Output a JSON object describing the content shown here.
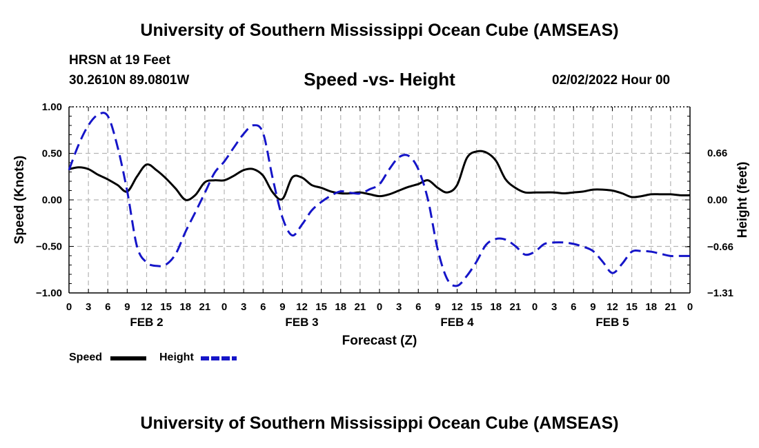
{
  "header": {
    "title": "University of Southern Mississippi Ocean Cube (AMSEAS)",
    "station": "HRSN at 19 Feet",
    "coordinates": "30.2610N  89.0801W",
    "subtitle": "Speed -vs- Height",
    "datestamp": "02/02/2022 Hour 00"
  },
  "footer": {
    "title": "University of Southern Mississippi Ocean Cube (AMSEAS)"
  },
  "chart_data": {
    "type": "line",
    "title": "Speed -vs- Height",
    "xlabel": "Forecast (Z)",
    "ylabel": "Speed (Knots)",
    "y2label": "Height (feet)",
    "x_range_hours": [
      0,
      96
    ],
    "x_tick_step_hours": 3,
    "x_tick_labels": [
      "0",
      "3",
      "6",
      "9",
      "12",
      "15",
      "18",
      "21",
      "0",
      "3",
      "6",
      "9",
      "12",
      "15",
      "18",
      "21",
      "0",
      "3",
      "6",
      "9",
      "12",
      "15",
      "18",
      "21",
      "0",
      "3",
      "6",
      "9",
      "12",
      "15",
      "18",
      "21",
      "0"
    ],
    "day_labels": [
      {
        "label": "FEB 2",
        "hour": 12
      },
      {
        "label": "FEB 3",
        "hour": 36
      },
      {
        "label": "FEB 4",
        "hour": 60
      },
      {
        "label": "FEB 5",
        "hour": 84
      }
    ],
    "ylim": [
      -1.0,
      1.0
    ],
    "y_ticks": [
      -1.0,
      -0.5,
      0.0,
      0.5,
      1.0
    ],
    "y_tick_labels": [
      "−1.00",
      "−0.50",
      "0.00",
      "0.50",
      "1.00"
    ],
    "y2lim": [
      -1.31,
      1.31
    ],
    "y2_ticks": [
      -1.31,
      -0.66,
      0.0,
      0.66
    ],
    "y2_tick_labels": [
      "−1.31",
      "−0.66",
      "0.00",
      "0.66"
    ],
    "grid": true,
    "legend_placement": "bottom-left",
    "series": [
      {
        "name": "Speed",
        "axis": "left",
        "color": "#000000",
        "dash": "solid",
        "x": [
          0,
          1.5,
          3,
          4.5,
          6,
          7.5,
          9,
          10.5,
          12,
          13.5,
          15,
          16.5,
          18,
          19.5,
          21,
          22.5,
          24,
          25.5,
          27,
          28.5,
          30,
          31.5,
          33,
          34.5,
          36,
          37.5,
          39,
          40.5,
          42,
          43.5,
          45,
          46.5,
          48,
          49.5,
          51,
          52.5,
          54,
          55.5,
          57,
          58.5,
          60,
          61.5,
          63,
          64.5,
          66,
          67.5,
          69,
          70.5,
          72,
          73.5,
          75,
          76.5,
          78,
          79.5,
          81,
          82.5,
          84,
          85.5,
          87,
          88.5,
          90,
          91.5,
          93,
          94.5,
          96
        ],
        "y": [
          0.33,
          0.35,
          0.33,
          0.27,
          0.22,
          0.16,
          0.09,
          0.25,
          0.38,
          0.32,
          0.23,
          0.12,
          0.0,
          0.05,
          0.19,
          0.21,
          0.21,
          0.26,
          0.32,
          0.33,
          0.26,
          0.08,
          0.01,
          0.24,
          0.24,
          0.16,
          0.13,
          0.09,
          0.07,
          0.07,
          0.08,
          0.06,
          0.04,
          0.06,
          0.1,
          0.14,
          0.17,
          0.21,
          0.13,
          0.08,
          0.16,
          0.45,
          0.52,
          0.51,
          0.42,
          0.22,
          0.13,
          0.08,
          0.08,
          0.08,
          0.08,
          0.07,
          0.08,
          0.09,
          0.11,
          0.11,
          0.1,
          0.07,
          0.03,
          0.04,
          0.06,
          0.06,
          0.06,
          0.05,
          0.05
        ]
      },
      {
        "name": "Height",
        "axis": "right",
        "color": "#1515c8",
        "dash": "dashed",
        "x": [
          0,
          1.5,
          3,
          4.5,
          6,
          7.5,
          9,
          10.5,
          12,
          13.5,
          15,
          16.5,
          18,
          19.5,
          21,
          22.5,
          24,
          25.5,
          27,
          28.5,
          30,
          31.5,
          33,
          34.5,
          36,
          37.5,
          39,
          40.5,
          42,
          43.5,
          45,
          46.5,
          48,
          49.5,
          51,
          52.5,
          54,
          55.5,
          57,
          58.5,
          60,
          61.5,
          63,
          64.5,
          66,
          67.5,
          69,
          70.5,
          72,
          73.5,
          75,
          76.5,
          78,
          79.5,
          81,
          82.5,
          84,
          85.5,
          87,
          88.5,
          90,
          91.5,
          93,
          94.5,
          96
        ],
        "y": [
          0.42,
          0.78,
          1.05,
          1.2,
          1.18,
          0.75,
          0.12,
          -0.65,
          -0.88,
          -0.93,
          -0.91,
          -0.76,
          -0.45,
          -0.18,
          0.1,
          0.38,
          0.54,
          0.74,
          0.93,
          1.05,
          0.94,
          0.3,
          -0.25,
          -0.5,
          -0.35,
          -0.15,
          -0.03,
          0.06,
          0.12,
          0.1,
          0.09,
          0.15,
          0.22,
          0.43,
          0.6,
          0.62,
          0.43,
          0.0,
          -0.7,
          -1.12,
          -1.21,
          -1.07,
          -0.87,
          -0.63,
          -0.55,
          -0.56,
          -0.65,
          -0.77,
          -0.73,
          -0.62,
          -0.6,
          -0.6,
          -0.62,
          -0.66,
          -0.72,
          -0.87,
          -1.03,
          -0.9,
          -0.73,
          -0.72,
          -0.73,
          -0.76,
          -0.79,
          -0.79,
          -0.79
        ]
      }
    ]
  }
}
